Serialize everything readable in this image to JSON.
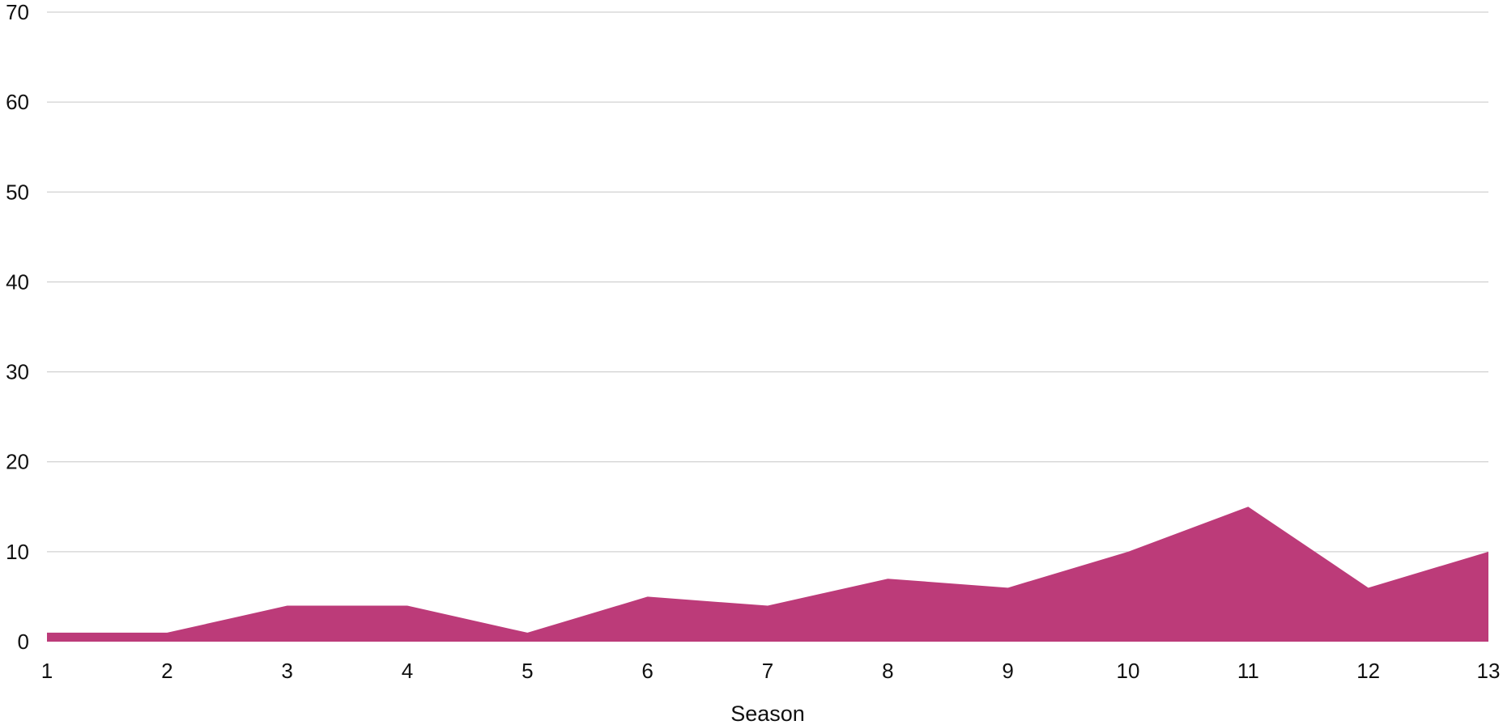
{
  "chart_data": {
    "type": "area",
    "title": "",
    "xlabel": "Season",
    "ylabel": "",
    "x": [
      1,
      2,
      3,
      4,
      5,
      6,
      7,
      8,
      9,
      10,
      11,
      12,
      13
    ],
    "series": [
      {
        "values": [
          1,
          1,
          4,
          4,
          1,
          5,
          4,
          7,
          6,
          10,
          15,
          6,
          10
        ],
        "color": "#bc3b79"
      }
    ],
    "ylim": [
      0,
      70
    ],
    "yticks": [
      0,
      10,
      20,
      30,
      40,
      50,
      60,
      70
    ],
    "xticks": [
      1,
      2,
      3,
      4,
      5,
      6,
      7,
      8,
      9,
      10,
      11,
      12,
      13
    ],
    "grid": true,
    "legend": "none"
  }
}
